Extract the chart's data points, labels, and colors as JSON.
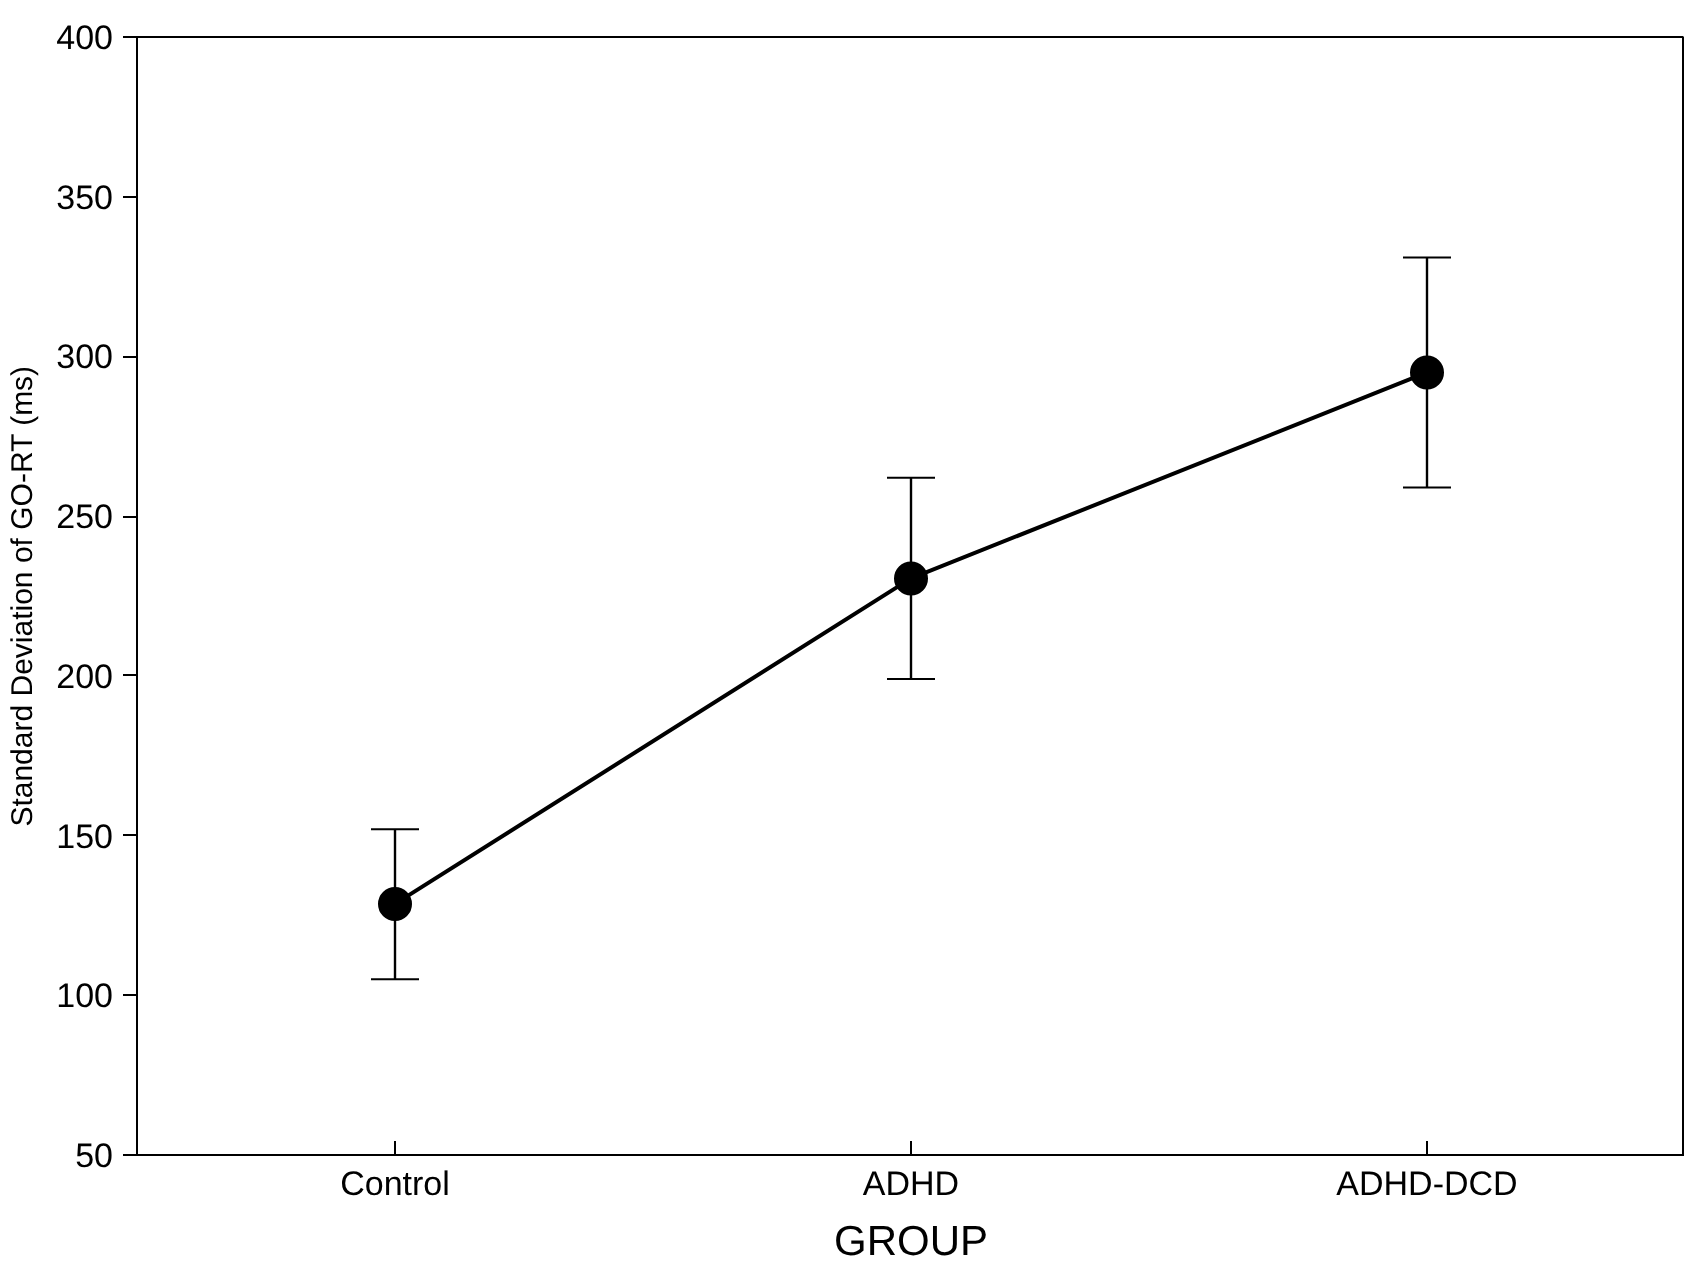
{
  "chart_data": {
    "type": "line",
    "xlabel": "GROUP",
    "ylabel": "Standard Deviation of GO-RT (ms)",
    "categories": [
      "Control",
      "ADHD",
      "ADHD-DCD"
    ],
    "series": [
      {
        "color": "#000000",
        "values": [
          128.6,
          230.5,
          295
        ],
        "errors": [
          [
            105,
            152
          ],
          [
            199,
            262
          ],
          [
            259,
            331
          ]
        ]
      }
    ],
    "ylim": [
      50,
      400
    ],
    "yticks": [
      50,
      100,
      150,
      200,
      250,
      300,
      350,
      400
    ],
    "grid": false,
    "marker": "circle",
    "line_style": "solid"
  }
}
